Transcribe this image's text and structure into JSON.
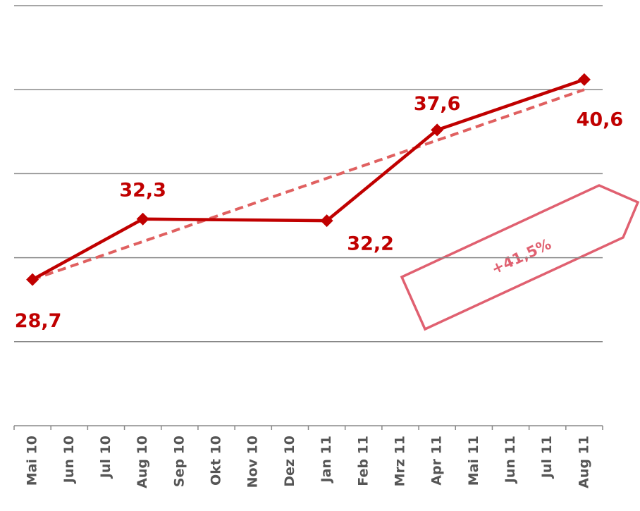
{
  "chart_data": {
    "type": "line",
    "categories": [
      "Mai 10",
      "Jun 10",
      "Jul 10",
      "Aug 10",
      "Sep 10",
      "Okt 10",
      "Nov 10",
      "Dez 10",
      "Jan 11",
      "Feb 11",
      "Mrz 11",
      "Apr 11",
      "Mai 11",
      "Jun 11",
      "Jul 11",
      "Aug 11"
    ],
    "series": [
      {
        "color": "#c00000",
        "x": [
          "Mai 10",
          "Aug 10",
          "Jan 11",
          "Apr 11",
          "Aug 11"
        ],
        "values": [
          28.7,
          32.3,
          32.2,
          37.6,
          40.6
        ],
        "value_labels": [
          "28,7",
          "32,3",
          "32,2",
          "37,6",
          "40,6"
        ]
      }
    ],
    "trend": {
      "color": "#e06060",
      "x": [
        "Mai 10",
        "Aug 11"
      ],
      "values": [
        28.7,
        40.0
      ]
    },
    "annotation": "+41,5%",
    "ylim": [
      20,
      45
    ],
    "yticks": [
      25,
      30,
      35,
      40,
      45
    ],
    "grid": true
  }
}
